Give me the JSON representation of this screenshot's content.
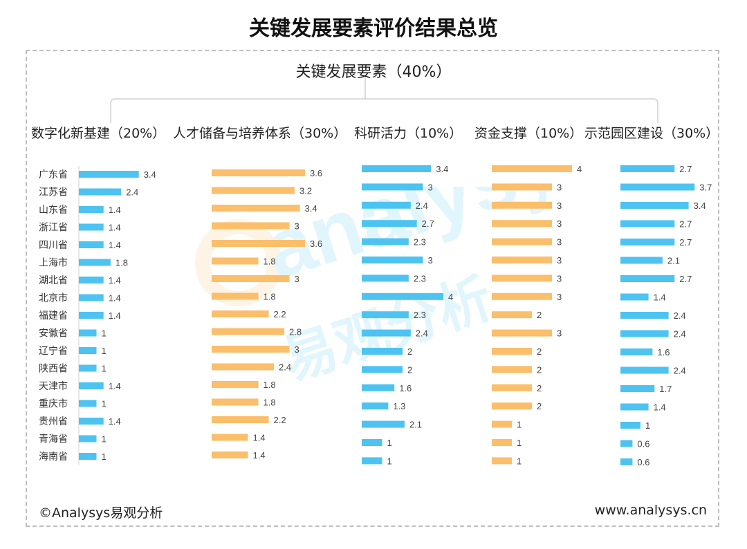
{
  "title": "关键发展要素评价结果总览",
  "root": {
    "label": "关键发展要素（40%）"
  },
  "watermark": {
    "text_latin": "analysys",
    "text_cn": "易观分析"
  },
  "footer": {
    "left": "©Analysys易观分析",
    "right": "www.analysys.cn"
  },
  "colors": {
    "blue": "#4DC3F2",
    "orange": "#FBBE6A",
    "axis": "#d0d0d0",
    "tree": "#cfcfcf"
  },
  "chart_data": [
    {
      "type": "bar",
      "title": "数字化新基建（20%）",
      "color": "blue",
      "categories": [
        "广东省",
        "江苏省",
        "山东省",
        "浙江省",
        "四川省",
        "上海市",
        "湖北省",
        "北京市",
        "福建省",
        "安徽省",
        "辽宁省",
        "陕西省",
        "天津市",
        "重庆市",
        "贵州省",
        "青海省",
        "海南省"
      ],
      "values": [
        3.4,
        2.4,
        1.4,
        1.4,
        1.4,
        1.8,
        1.4,
        1.4,
        1.4,
        1,
        1,
        1,
        1.4,
        1,
        1.4,
        1,
        1
      ]
    },
    {
      "type": "bar",
      "title": "人才储备与培养体系（30%）",
      "color": "orange",
      "values": [
        3.6,
        3.2,
        3.4,
        3,
        3.6,
        1.8,
        3,
        1.8,
        2.2,
        2.8,
        3,
        2.4,
        1.8,
        1.8,
        2.2,
        1.4,
        1.4
      ]
    },
    {
      "type": "bar",
      "title": "科研活力（10%）",
      "color": "blue",
      "values": [
        3.4,
        3,
        2.4,
        2.7,
        2.3,
        3,
        2.3,
        4,
        2.3,
        2.4,
        2,
        2,
        1.6,
        1.3,
        2.1,
        1,
        1
      ]
    },
    {
      "type": "bar",
      "title": "资金支撑（10%）",
      "color": "orange",
      "values": [
        4,
        3,
        3,
        3,
        3,
        3,
        3,
        3,
        2,
        3,
        2,
        2,
        2,
        2,
        1,
        1,
        1
      ]
    },
    {
      "type": "bar",
      "title": "示范园区建设（30%）",
      "color": "blue",
      "values": [
        2.7,
        3.7,
        3.4,
        2.7,
        2.7,
        2.1,
        2.7,
        1.4,
        2.4,
        2.4,
        1.6,
        2.4,
        1.7,
        1.4,
        1,
        0.6,
        0.6
      ]
    }
  ]
}
